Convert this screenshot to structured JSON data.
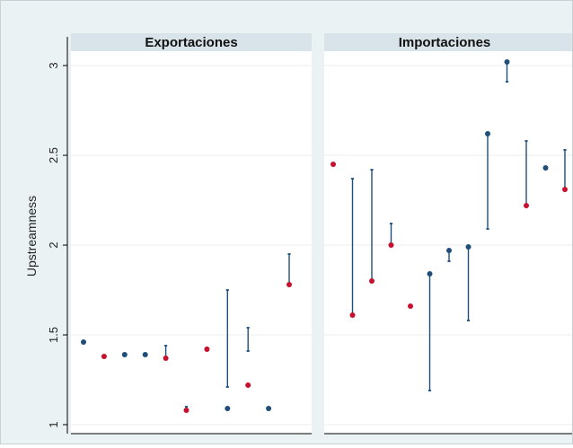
{
  "chart_data": {
    "type": "scatter",
    "ylabel": "Upstreamness",
    "ylim": [
      0.95,
      3.08
    ],
    "yticks": [
      1,
      1.5,
      2,
      2.5,
      3
    ],
    "ytick_labels": [
      "1",
      "1.5",
      "2",
      "2.5",
      "3"
    ],
    "grid": true,
    "colors": {
      "navy": "#1f4e79",
      "red": "#c8102e",
      "strip": "#d8e3ea",
      "panel_bg": "#eaf2f3"
    },
    "panels": [
      {
        "title": "Exportaciones",
        "points": [
          {
            "x": 1,
            "y": 1.46,
            "color": "navy"
          },
          {
            "x": 2,
            "y": 1.38,
            "color": "red"
          },
          {
            "x": 3,
            "y": 1.39,
            "color": "navy"
          },
          {
            "x": 4,
            "y": 1.39,
            "color": "navy"
          },
          {
            "x": 5,
            "y": 1.37,
            "color": "red"
          },
          {
            "x": 6,
            "y": 1.08,
            "color": "red"
          },
          {
            "x": 7,
            "y": 1.42,
            "color": "red"
          },
          {
            "x": 8,
            "y": 1.09,
            "color": "navy"
          },
          {
            "x": 9,
            "y": 1.22,
            "color": "red"
          },
          {
            "x": 10,
            "y": 1.09,
            "color": "navy"
          },
          {
            "x": 11,
            "y": 1.78,
            "color": "red"
          }
        ],
        "segments": [
          {
            "x": 5,
            "y1": 1.37,
            "y2": 1.44
          },
          {
            "x": 6,
            "y1": 1.08,
            "y2": 1.1
          },
          {
            "x": 7,
            "y1": 1.42,
            "y2": 1.43
          },
          {
            "x": 8,
            "y1": 1.21,
            "y2": 1.75
          },
          {
            "x": 9,
            "y1": 1.41,
            "y2": 1.54
          },
          {
            "x": 11,
            "y1": 1.78,
            "y2": 1.95
          }
        ]
      },
      {
        "title": "Importaciones",
        "points": [
          {
            "x": 1,
            "y": 2.45,
            "color": "red"
          },
          {
            "x": 2,
            "y": 1.61,
            "color": "red"
          },
          {
            "x": 3,
            "y": 1.8,
            "color": "red"
          },
          {
            "x": 4,
            "y": 2.0,
            "color": "red"
          },
          {
            "x": 5,
            "y": 1.66,
            "color": "red"
          },
          {
            "x": 6,
            "y": 1.84,
            "color": "navy"
          },
          {
            "x": 7,
            "y": 1.97,
            "color": "navy"
          },
          {
            "x": 8,
            "y": 1.99,
            "color": "navy"
          },
          {
            "x": 9,
            "y": 2.62,
            "color": "navy"
          },
          {
            "x": 10,
            "y": 3.02,
            "color": "navy"
          },
          {
            "x": 11,
            "y": 2.22,
            "color": "red"
          },
          {
            "x": 12,
            "y": 2.43,
            "color": "navy"
          },
          {
            "x": 13,
            "y": 2.31,
            "color": "red"
          }
        ],
        "segments": [
          {
            "x": 2,
            "y1": 1.61,
            "y2": 2.37
          },
          {
            "x": 3,
            "y1": 1.8,
            "y2": 2.42
          },
          {
            "x": 4,
            "y1": 2.0,
            "y2": 2.12
          },
          {
            "x": 6,
            "y1": 1.19,
            "y2": 1.84
          },
          {
            "x": 7,
            "y1": 1.91,
            "y2": 1.97
          },
          {
            "x": 8,
            "y1": 1.58,
            "y2": 1.99
          },
          {
            "x": 9,
            "y1": 2.09,
            "y2": 2.62
          },
          {
            "x": 10,
            "y1": 2.91,
            "y2": 3.02
          },
          {
            "x": 11,
            "y1": 2.22,
            "y2": 2.58
          },
          {
            "x": 13,
            "y1": 2.31,
            "y2": 2.53
          }
        ]
      }
    ]
  }
}
